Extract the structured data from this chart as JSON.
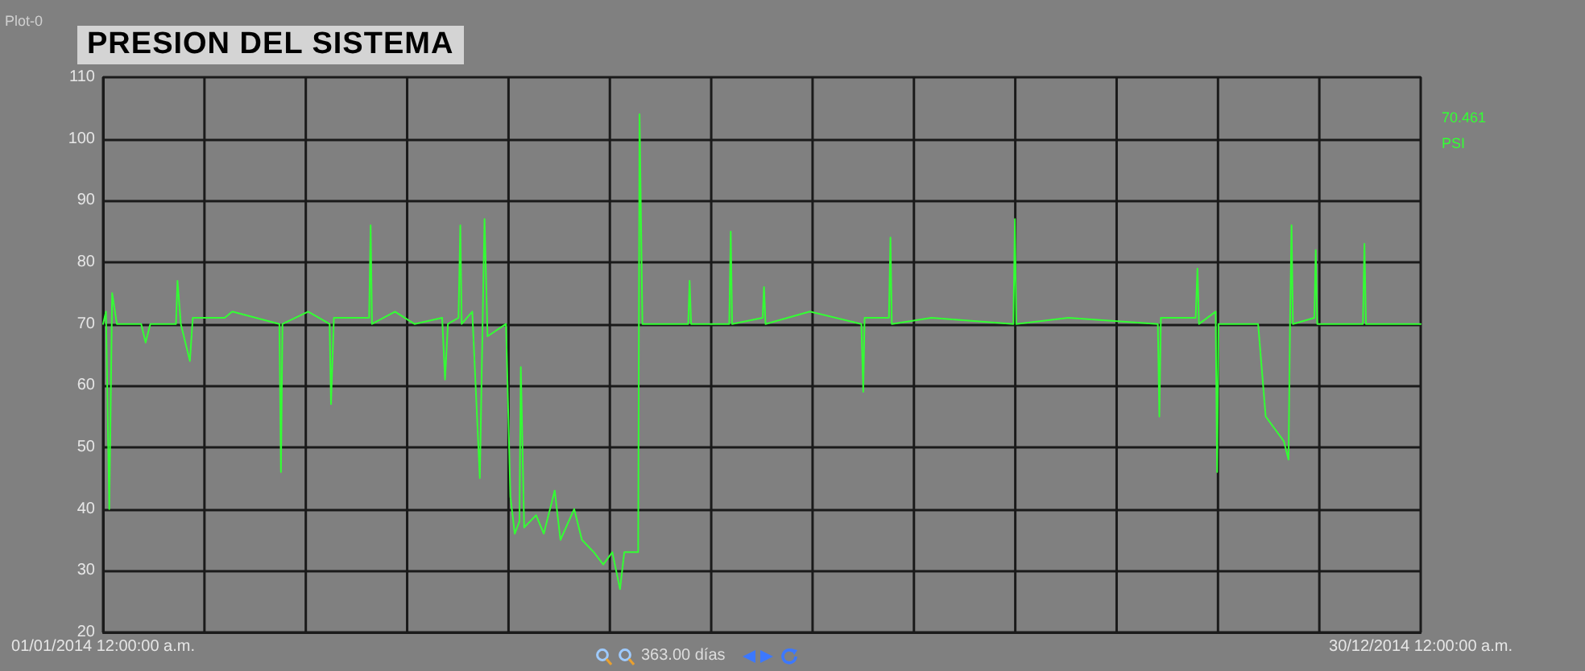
{
  "chart_data": {
    "type": "line",
    "title": "PRESION DEL SISTEMA",
    "annotations": [
      "Plot-0",
      "363.00 días",
      "70.461",
      "PSI"
    ],
    "x": [
      "2014-01-01T00:00",
      "2014-01-01T19:00",
      "2014-01-02T17:00",
      "2014-01-03T12:00",
      "2014-01-04T19:00",
      "2014-01-11T12:00",
      "2014-01-12T17:00",
      "2014-01-14T00:00",
      "2014-01-21T02:00",
      "2014-01-21T12:00",
      "2014-01-22T10:00",
      "2014-01-24T22:00",
      "2014-01-25T17:00",
      "2014-02-03T12:00",
      "2014-02-05T14:00",
      "2014-02-18T14:00",
      "2014-02-19T00:00",
      "2014-02-19T10:00",
      "2014-02-26T12:00",
      "2014-03-04T10:00",
      "2014-03-04T19:00",
      "2014-03-05T14:00",
      "2014-03-15T07:00",
      "2014-03-15T17:00",
      "2014-03-16T02:00",
      "2014-03-22T10:00",
      "2014-03-27T19:00",
      "2014-04-04T10:00",
      "2014-04-05T05:00",
      "2014-04-06T00:00",
      "2014-04-08T22:00",
      "2014-04-09T10:00",
      "2014-04-09T19:00",
      "2014-04-12T17:00",
      "2014-04-14T19:00",
      "2014-04-15T17:00",
      "2014-04-16T02:00",
      "2014-04-16T22:00",
      "2014-04-22T00:00",
      "2014-04-23T05:00",
      "2014-04-24T10:00",
      "2014-04-25T17:00",
      "2014-04-26T02:00",
      "2014-04-27T00:00",
      "2014-04-30T07:00",
      "2014-05-02T10:00",
      "2014-05-05T10:00",
      "2014-05-07T00:00",
      "2014-05-10T19:00",
      "2014-05-12T22:00",
      "2014-05-16T05:00",
      "2014-05-18T19:00",
      "2014-05-21T07:00",
      "2014-05-23T10:00",
      "2014-05-24T14:00",
      "2014-05-28T10:00",
      "2014-05-28T19:00",
      "2014-05-29T14:00",
      "2014-06-02T19:00",
      "2014-06-11T05:00",
      "2014-06-11T14:00",
      "2014-06-12T00:00",
      "2014-06-22T12:00",
      "2014-06-22T22:00",
      "2014-06-23T07:00",
      "2014-07-01T17:00",
      "2014-07-02T02:00",
      "2014-07-02T12:00",
      "2014-07-14T17:00",
      "2014-07-28T22:00",
      "2014-07-29T10:00",
      "2014-07-29T19:00",
      "2014-08-05T12:00",
      "2014-08-05T22:00",
      "2014-08-06T07:00",
      "2014-08-17T05:00",
      "2014-09-08T19:00",
      "2014-09-09T05:00",
      "2014-09-09T14:00",
      "2014-09-23T22:00",
      "2014-10-18T14:00",
      "2014-10-19T00:00",
      "2014-10-19T10:00",
      "2014-10-29T00:00",
      "2014-10-29T12:00",
      "2014-10-29T22:00",
      "2014-11-03T12:00",
      "2014-11-03T22:00",
      "2014-11-04T07:00",
      "2014-11-15T05:00",
      "2014-11-17T07:00",
      "2014-11-19T19:00",
      "2014-11-22T07:00",
      "2014-11-23T14:00",
      "2014-11-24T00:00",
      "2014-11-24T10:00",
      "2014-11-24T19:00",
      "2014-11-30T17:00",
      "2014-12-01T02:00",
      "2014-12-01T12:00",
      "2014-12-14T02:00",
      "2014-12-14T12:00",
      "2014-12-14T22:00",
      "2014-12-30T00:00"
    ],
    "series": [
      {
        "color": "#33ff33",
        "values": [
          70,
          72,
          40,
          75,
          70,
          70,
          67,
          70,
          70,
          77,
          70,
          64,
          71,
          71,
          72,
          70,
          46,
          70,
          72,
          70,
          57,
          71,
          71,
          86,
          70,
          72,
          70,
          71,
          61,
          70,
          71,
          86,
          70,
          72,
          45,
          75,
          87,
          68,
          70,
          42,
          36,
          38,
          63,
          37,
          39,
          36,
          43,
          35,
          40,
          35,
          33,
          31,
          33,
          27,
          33,
          33,
          104,
          70,
          70,
          70,
          77,
          70,
          70,
          85,
          70,
          71,
          76,
          70,
          72,
          70,
          59,
          71,
          71,
          84,
          70,
          71,
          70,
          87,
          70,
          71,
          70,
          55,
          71,
          71,
          79,
          70,
          72,
          46,
          70,
          70,
          55,
          53,
          51,
          48,
          70,
          86,
          70,
          71,
          82,
          70,
          70,
          83,
          70,
          70
        ]
      }
    ],
    "xlim": [
      "2014-01-01T00:00",
      "2014-12-30T00:00"
    ],
    "xticks": [
      {
        "value": "2014-01-01T00:00",
        "label": "01/01/2014 12:00:00 a.m."
      },
      {
        "value": "2014-01-28T22:09",
        "label": null
      },
      {
        "value": "2014-02-25T20:18",
        "label": null
      },
      {
        "value": "2014-03-25T18:28",
        "label": null
      },
      {
        "value": "2014-04-22T16:37",
        "label": null
      },
      {
        "value": "2014-05-20T14:46",
        "label": null
      },
      {
        "value": "2014-06-17T12:55",
        "label": null
      },
      {
        "value": "2014-07-15T11:05",
        "label": null
      },
      {
        "value": "2014-08-12T09:14",
        "label": null
      },
      {
        "value": "2014-09-09T07:23",
        "label": null
      },
      {
        "value": "2014-10-07T05:32",
        "label": null
      },
      {
        "value": "2014-11-04T03:42",
        "label": null
      },
      {
        "value": "2014-12-02T01:51",
        "label": null
      },
      {
        "value": "2014-12-30T00:00",
        "label": "30/12/2014 12:00:00 a.m."
      }
    ],
    "ylim": [
      20,
      110
    ],
    "yticks": [
      20,
      30,
      40,
      50,
      60,
      70,
      80,
      90,
      100,
      110
    ],
    "grid": true,
    "marker": "none",
    "line_style": "solid"
  }
}
